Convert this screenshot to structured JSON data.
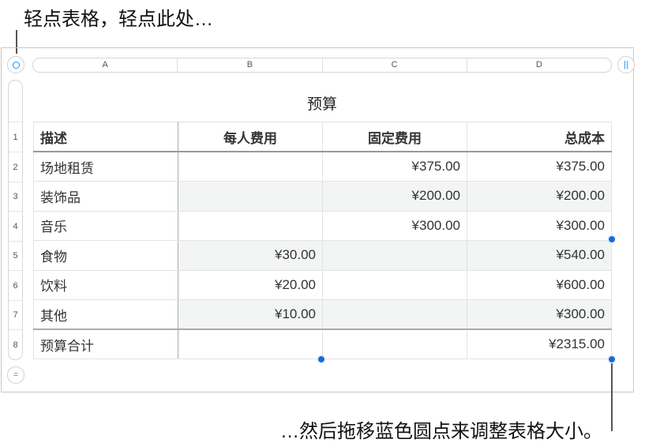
{
  "callouts": {
    "top": "轻点表格，轻点此处…",
    "bottom": "…然后拖移蓝色圆点来调整表格大小。"
  },
  "column_headers": [
    "A",
    "B",
    "C",
    "D"
  ],
  "row_headers": [
    "1",
    "2",
    "3",
    "4",
    "5",
    "6",
    "7",
    "8"
  ],
  "table": {
    "title": "预算",
    "header": [
      "描述",
      "每人费用",
      "固定费用",
      "总成本"
    ],
    "rows": [
      [
        "场地租赁",
        "",
        "¥375.00",
        "¥375.00"
      ],
      [
        "装饰品",
        "",
        "¥200.00",
        "¥200.00"
      ],
      [
        "音乐",
        "",
        "¥300.00",
        "¥300.00"
      ],
      [
        "食物",
        "¥30.00",
        "",
        "¥540.00"
      ],
      [
        "饮料",
        "¥20.00",
        "",
        "¥600.00"
      ],
      [
        "其他",
        "¥10.00",
        "",
        "¥300.00"
      ]
    ],
    "footer": [
      "预算合计",
      "",
      "",
      "¥2315.00"
    ]
  },
  "colors": {
    "accent": "#1469e0",
    "stripe": "#f2f5f4"
  }
}
